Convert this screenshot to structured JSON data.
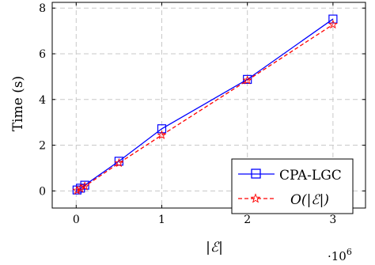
{
  "chart_data": {
    "type": "line",
    "xlabel": "|ℰ|",
    "ylabel": "Time (s)",
    "x_multiplier_label": "·10",
    "x_multiplier_exp": "6",
    "xlim": [
      -0.28,
      3.38
    ],
    "ylim": [
      -0.75,
      8.25
    ],
    "x_ticks": [
      0,
      1,
      2,
      3
    ],
    "y_ticks": [
      0,
      2,
      4,
      6,
      8
    ],
    "grid": true,
    "legend_position": "bottom-right",
    "series": [
      {
        "name": "CPA-LGC",
        "color": "#0000ff",
        "marker": "square",
        "dash": "solid",
        "x": [
          0.01,
          0.05,
          0.1,
          0.5,
          1,
          2,
          3
        ],
        "y": [
          0.04,
          0.12,
          0.25,
          1.3,
          2.72,
          4.88,
          7.52
        ]
      },
      {
        "name": "O(|ℰ|)",
        "color": "#ff0000",
        "marker": "star",
        "dash": "dashed",
        "x": [
          0.01,
          0.05,
          0.1,
          0.5,
          1,
          2,
          3
        ],
        "y": [
          0.02,
          0.1,
          0.2,
          1.22,
          2.44,
          4.84,
          7.28
        ]
      }
    ]
  }
}
